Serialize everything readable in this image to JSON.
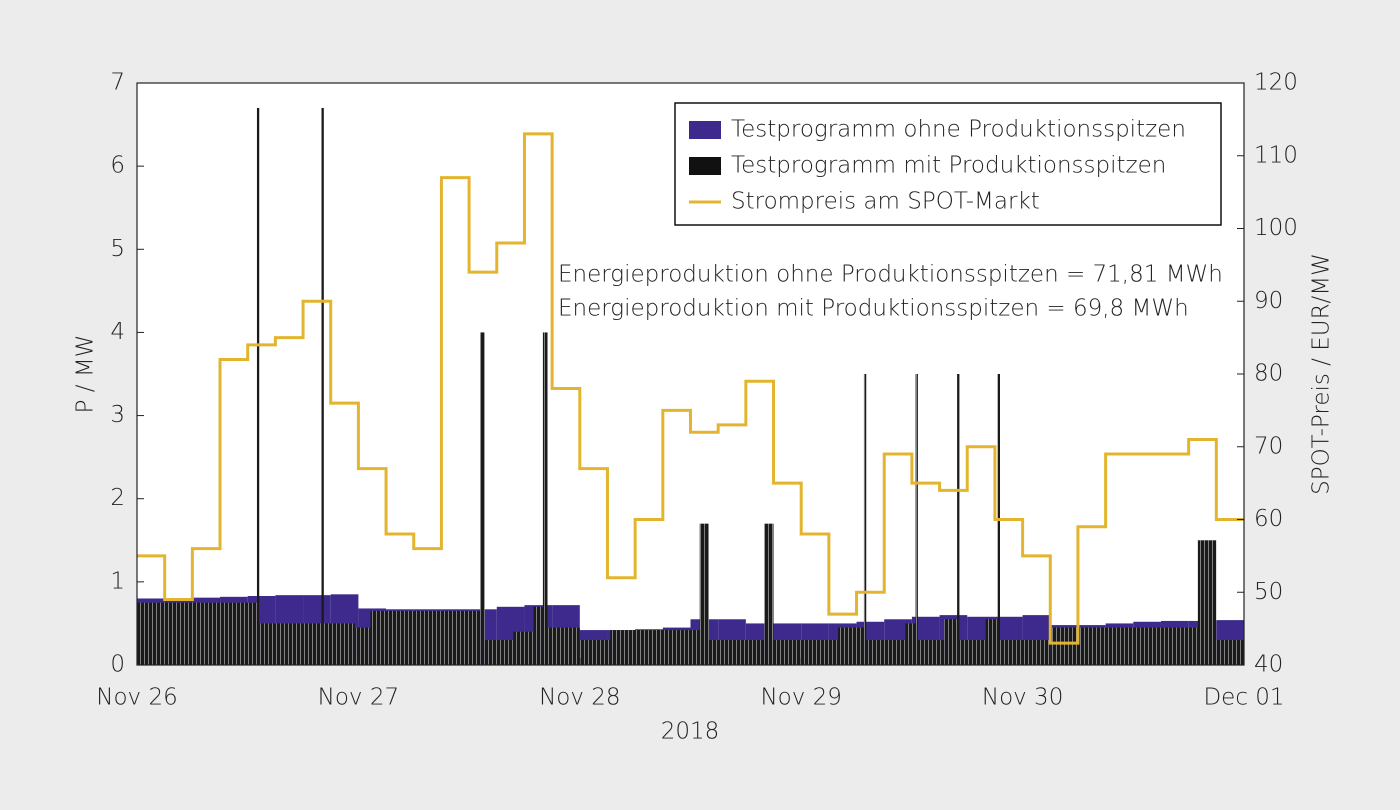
{
  "chart_data": {
    "type": "line",
    "x": [
      0,
      3,
      6,
      9,
      12,
      15,
      18,
      21,
      24,
      27,
      30,
      33,
      36,
      39,
      42,
      45,
      48,
      51,
      54,
      57,
      60,
      63,
      66,
      69,
      72,
      75,
      78,
      81,
      84,
      87,
      90,
      93,
      96,
      99,
      102,
      105,
      108,
      111,
      114,
      117
    ],
    "xlim": [
      0,
      120
    ],
    "xticks": [
      {
        "value": 0,
        "label": "Nov 26"
      },
      {
        "value": 24,
        "label": "Nov 27"
      },
      {
        "value": 48,
        "label": "Nov 28"
      },
      {
        "value": 72,
        "label": "Nov 29"
      },
      {
        "value": 96,
        "label": "Nov 30"
      },
      {
        "value": 120,
        "label": "Dec 01"
      }
    ],
    "x_label": "2018",
    "y_label": "P / MW",
    "y2_label": "SPOT-Preis / EUR/MW",
    "ylim": [
      0,
      7
    ],
    "yticks": [
      0,
      1,
      2,
      3,
      4,
      5,
      6,
      7
    ],
    "y2lim": [
      40,
      120
    ],
    "y2ticks": [
      40,
      50,
      60,
      70,
      80,
      90,
      100,
      110,
      120
    ],
    "y2_color": "#e6a84a",
    "legend": "upper right",
    "series": [
      {
        "name": "Testprogramm ohne Produktionsspitzen",
        "color": "#3d2a8c",
        "kind": "step-bar",
        "values": [
          0.8,
          0.8,
          0.81,
          0.82,
          0.83,
          0.84,
          0.84,
          0.85,
          0.68,
          0.67,
          0.67,
          0.67,
          0.67,
          0.7,
          0.72,
          0.72,
          0.42,
          0.42,
          0.43,
          0.45,
          0.55,
          0.55,
          0.5,
          0.5,
          0.5,
          0.5,
          0.52,
          0.55,
          0.58,
          0.6,
          0.58,
          0.58,
          0.6,
          0.48,
          0.48,
          0.5,
          0.52,
          0.53,
          0.53,
          0.54
        ]
      },
      {
        "name": "Testprogramm mit Produktionsspitzen",
        "color": "#111111",
        "kind": "step-bar",
        "x": [
          0,
          13,
          13.25,
          20,
          20.25,
          23.6,
          25.3,
          37.2,
          37.7,
          40.8,
          43,
          44,
          44.5,
          48,
          51.3,
          61,
          62,
          68,
          69,
          76,
          78.8,
          79.05,
          83.3,
          84.4,
          84.65,
          87.5,
          88.9,
          89.15,
          92,
          93.3,
          93.55,
          99,
          115,
          117
        ],
        "values": [
          0.75,
          6.7,
          0.5,
          6.7,
          0.5,
          0.45,
          0.65,
          4.0,
          0.3,
          0.4,
          0.7,
          4.0,
          0.45,
          0.3,
          0.42,
          1.7,
          0.3,
          1.7,
          0.3,
          0.45,
          3.5,
          0.3,
          0.5,
          3.5,
          0.3,
          0.55,
          3.5,
          0.3,
          0.55,
          3.5,
          0.3,
          0.45,
          1.5,
          0.3
        ]
      },
      {
        "name": "Strompreis am SPOT-Markt",
        "color": "#e3b52e",
        "kind": "step-line",
        "axis": "y2",
        "values": [
          55,
          49,
          56,
          82,
          84,
          85,
          90,
          76,
          67,
          58,
          56,
          107,
          94,
          98,
          113,
          78,
          67,
          52,
          60,
          75,
          72,
          73,
          79,
          65,
          58,
          47,
          50,
          69,
          65,
          64,
          70,
          60,
          55,
          43,
          59,
          69,
          69,
          69,
          71,
          60
        ]
      }
    ],
    "annotations": [
      {
        "text": "Energieproduktion ohne Produktionsspitzen = 71,81 MWh",
        "color": "#3d2a8c"
      },
      {
        "text": "Energieproduktion mit Produktionsspitzen = 69,8 MWh",
        "color": "#222222"
      }
    ]
  }
}
